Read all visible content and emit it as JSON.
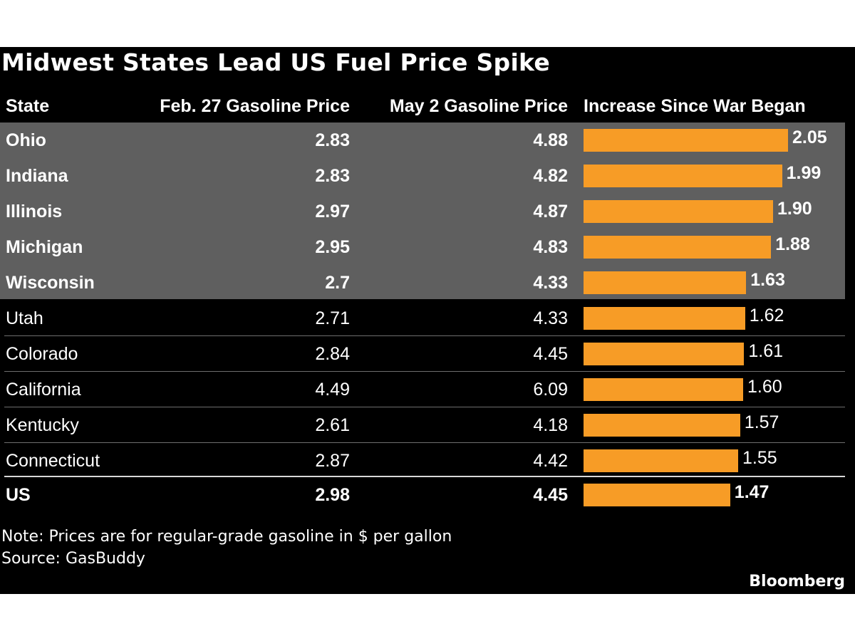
{
  "chart_data": {
    "type": "table",
    "title": "Midwest States Lead US Fuel Price Spike",
    "columns": [
      "State",
      "Feb. 27 Gasoline Price",
      "May 2 Gasoline Price",
      "Increase Since War Began"
    ],
    "rows": [
      {
        "state": "Ohio",
        "feb27": "2.83",
        "may2": "4.88",
        "increase": "2.05",
        "highlighted": true
      },
      {
        "state": "Indiana",
        "feb27": "2.83",
        "may2": "4.82",
        "increase": "1.99",
        "highlighted": true
      },
      {
        "state": "Illinois",
        "feb27": "2.97",
        "may2": "4.87",
        "increase": "1.90",
        "highlighted": true
      },
      {
        "state": "Michigan",
        "feb27": "2.95",
        "may2": "4.83",
        "increase": "1.88",
        "highlighted": true
      },
      {
        "state": "Wisconsin",
        "feb27": "2.7",
        "may2": "4.33",
        "increase": "1.63",
        "highlighted": true
      },
      {
        "state": "Utah",
        "feb27": "2.71",
        "may2": "4.33",
        "increase": "1.62",
        "highlighted": false
      },
      {
        "state": "Colorado",
        "feb27": "2.84",
        "may2": "4.45",
        "increase": "1.61",
        "highlighted": false
      },
      {
        "state": "California",
        "feb27": "4.49",
        "may2": "6.09",
        "increase": "1.60",
        "highlighted": false
      },
      {
        "state": "Kentucky",
        "feb27": "2.61",
        "may2": "4.18",
        "increase": "1.57",
        "highlighted": false
      },
      {
        "state": "Connecticut",
        "feb27": "2.87",
        "may2": "4.42",
        "increase": "1.55",
        "highlighted": false
      }
    ],
    "total": {
      "state": "US",
      "feb27": "2.98",
      "may2": "4.45",
      "increase": "1.47"
    },
    "bar_color": "#f79c26",
    "highlight_color": "#5f5f5f",
    "background_color": "#000000"
  },
  "footnote": {
    "note": "Note: Prices are for regular-grade gasoline in $ per gallon",
    "source": "Source: GasBuddy"
  },
  "brand": "Bloomberg"
}
